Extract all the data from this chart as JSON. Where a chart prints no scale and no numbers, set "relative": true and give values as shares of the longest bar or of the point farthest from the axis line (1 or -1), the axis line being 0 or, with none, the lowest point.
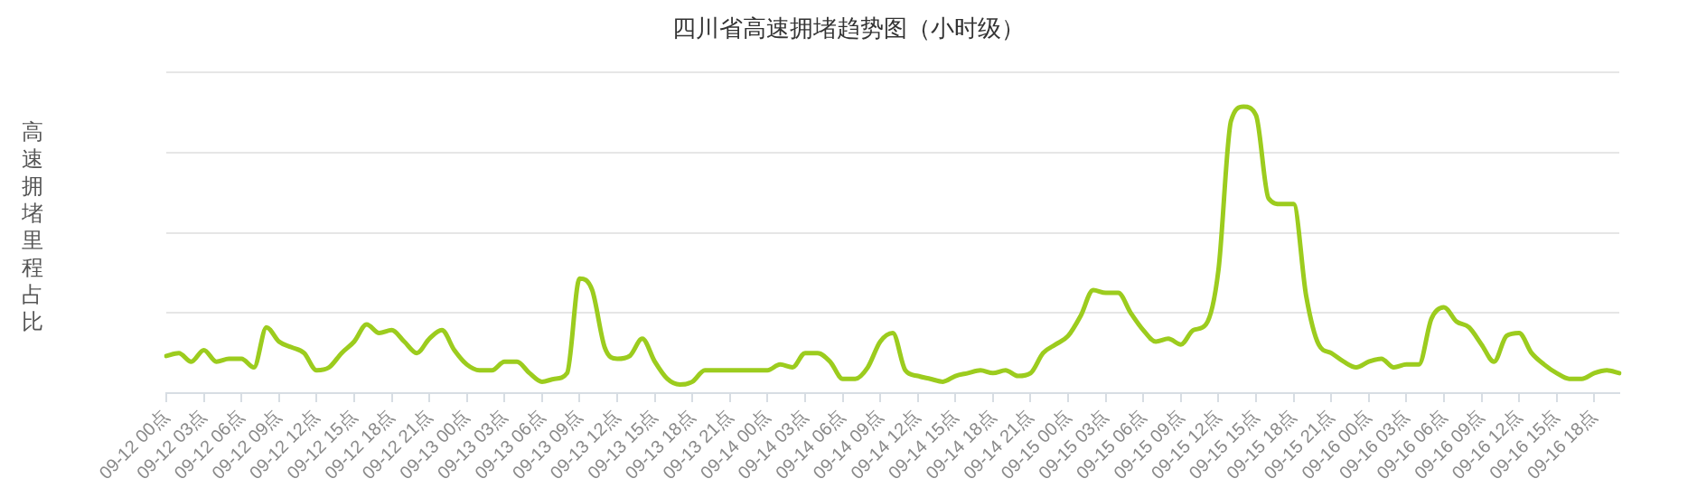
{
  "chart_data": {
    "type": "line",
    "title": "四川省高速拥堵趋势图（小时级）",
    "ylabel": "高速拥堵里程占比",
    "relative": true,
    "grid": "y",
    "legend": false,
    "marker": "none",
    "line_style": "solid",
    "categories": [
      "09-12 00点",
      null,
      null,
      "09-12 03点",
      null,
      null,
      "09-12 06点",
      null,
      null,
      "09-12 09点",
      null,
      null,
      "09-12 12点",
      null,
      null,
      "09-12 15点",
      null,
      null,
      "09-12 18点",
      null,
      null,
      "09-12 21点",
      null,
      null,
      "09-13 00点",
      null,
      null,
      "09-13 03点",
      null,
      null,
      "09-13 06点",
      null,
      null,
      "09-13 09点",
      null,
      null,
      "09-13 12点",
      null,
      null,
      "09-13 15点",
      null,
      null,
      "09-13 18点",
      null,
      null,
      "09-13 21点",
      null,
      null,
      "09-14 00点",
      null,
      null,
      "09-14 03点",
      null,
      null,
      "09-14 06点",
      null,
      null,
      "09-14 09点",
      null,
      null,
      "09-14 12点",
      null,
      null,
      "09-14 15点",
      null,
      null,
      "09-14 18点",
      null,
      null,
      "09-14 21点",
      null,
      null,
      "09-15 00点",
      null,
      null,
      "09-15 03点",
      null,
      null,
      "09-15 06点",
      null,
      null,
      "09-15 09点",
      null,
      null,
      "09-15 12点",
      null,
      null,
      "09-15 15点",
      null,
      null,
      "09-15 18点",
      null,
      null,
      "09-15 21点",
      null,
      null,
      "09-16 00点",
      null,
      null,
      "09-16 03点",
      null,
      null,
      "09-16 06点",
      null,
      null,
      "09-16 09点",
      null,
      null,
      "09-16 12点",
      null,
      null,
      "09-16 15点",
      null,
      null,
      "09-16 18点",
      null,
      null
    ],
    "series": [
      {
        "color": "#9ccc1e",
        "values": [
          0.13,
          0.14,
          0.11,
          0.15,
          0.11,
          0.12,
          0.12,
          0.09,
          0.23,
          0.18,
          0.16,
          0.14,
          0.08,
          0.09,
          0.14,
          0.18,
          0.24,
          0.21,
          0.22,
          0.18,
          0.14,
          0.19,
          0.22,
          0.15,
          0.1,
          0.08,
          0.08,
          0.11,
          0.11,
          0.07,
          0.04,
          0.05,
          0.07,
          0.4,
          0.36,
          0.16,
          0.12,
          0.13,
          0.19,
          0.11,
          0.05,
          0.03,
          0.04,
          0.08,
          0.08,
          0.08,
          0.08,
          0.08,
          0.08,
          0.1,
          0.09,
          0.14,
          0.14,
          0.11,
          0.05,
          0.05,
          0.09,
          0.18,
          0.21,
          0.08,
          0.06,
          0.05,
          0.04,
          0.06,
          0.07,
          0.08,
          0.07,
          0.08,
          0.06,
          0.07,
          0.14,
          0.17,
          0.2,
          0.27,
          0.36,
          0.35,
          0.35,
          0.28,
          0.22,
          0.18,
          0.19,
          0.17,
          0.22,
          0.24,
          0.43,
          0.95,
          1,
          0.97,
          0.68,
          0.66,
          0.66,
          0.34,
          0.17,
          0.14,
          0.11,
          0.09,
          0.11,
          0.12,
          0.09,
          0.1,
          0.1,
          0.26,
          0.3,
          0.25,
          0.23,
          0.17,
          0.11,
          0.2,
          0.21,
          0.14,
          0.1,
          0.07,
          0.05,
          0.05,
          0.07,
          0.08,
          0.07
        ]
      }
    ]
  }
}
